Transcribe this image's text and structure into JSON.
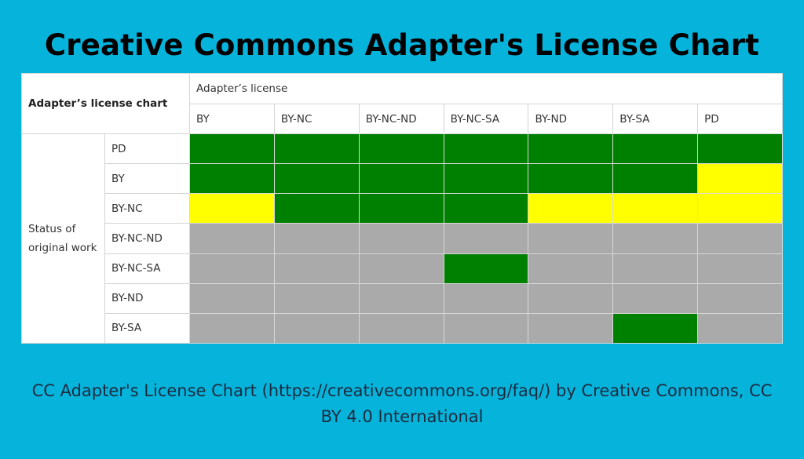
{
  "title": "Creative Commons Adapter's License Chart",
  "table": {
    "corner": "Adapter’s license chart",
    "column_group": "Adapter’s license",
    "columns": [
      "BY",
      "BY-NC",
      "BY-NC-ND",
      "BY-NC-SA",
      "BY-ND",
      "BY-SA",
      "PD"
    ],
    "row_group": "Status of original work",
    "rows": [
      "PD",
      "BY",
      "BY-NC",
      "BY-NC-ND",
      "BY-NC-SA",
      "BY-ND",
      "BY-SA"
    ],
    "cell_colors": [
      [
        "#008000",
        "#008000",
        "#008000",
        "#008000",
        "#008000",
        "#008000",
        "#008000"
      ],
      [
        "#008000",
        "#008000",
        "#008000",
        "#008000",
        "#008000",
        "#008000",
        "#ffff00"
      ],
      [
        "#ffff00",
        "#008000",
        "#008000",
        "#008000",
        "#ffff00",
        "#ffff00",
        "#ffff00"
      ],
      [
        "#aaaaaa",
        "#aaaaaa",
        "#aaaaaa",
        "#aaaaaa",
        "#aaaaaa",
        "#aaaaaa",
        "#aaaaaa"
      ],
      [
        "#aaaaaa",
        "#aaaaaa",
        "#aaaaaa",
        "#008000",
        "#aaaaaa",
        "#aaaaaa",
        "#aaaaaa"
      ],
      [
        "#aaaaaa",
        "#aaaaaa",
        "#aaaaaa",
        "#aaaaaa",
        "#aaaaaa",
        "#aaaaaa",
        "#aaaaaa"
      ],
      [
        "#aaaaaa",
        "#aaaaaa",
        "#aaaaaa",
        "#aaaaaa",
        "#aaaaaa",
        "#008000",
        "#aaaaaa"
      ]
    ]
  },
  "caption": "CC Adapter's License Chart (https://creativecommons.org/faq/) by Creative Commons, CC BY 4.0 International"
}
